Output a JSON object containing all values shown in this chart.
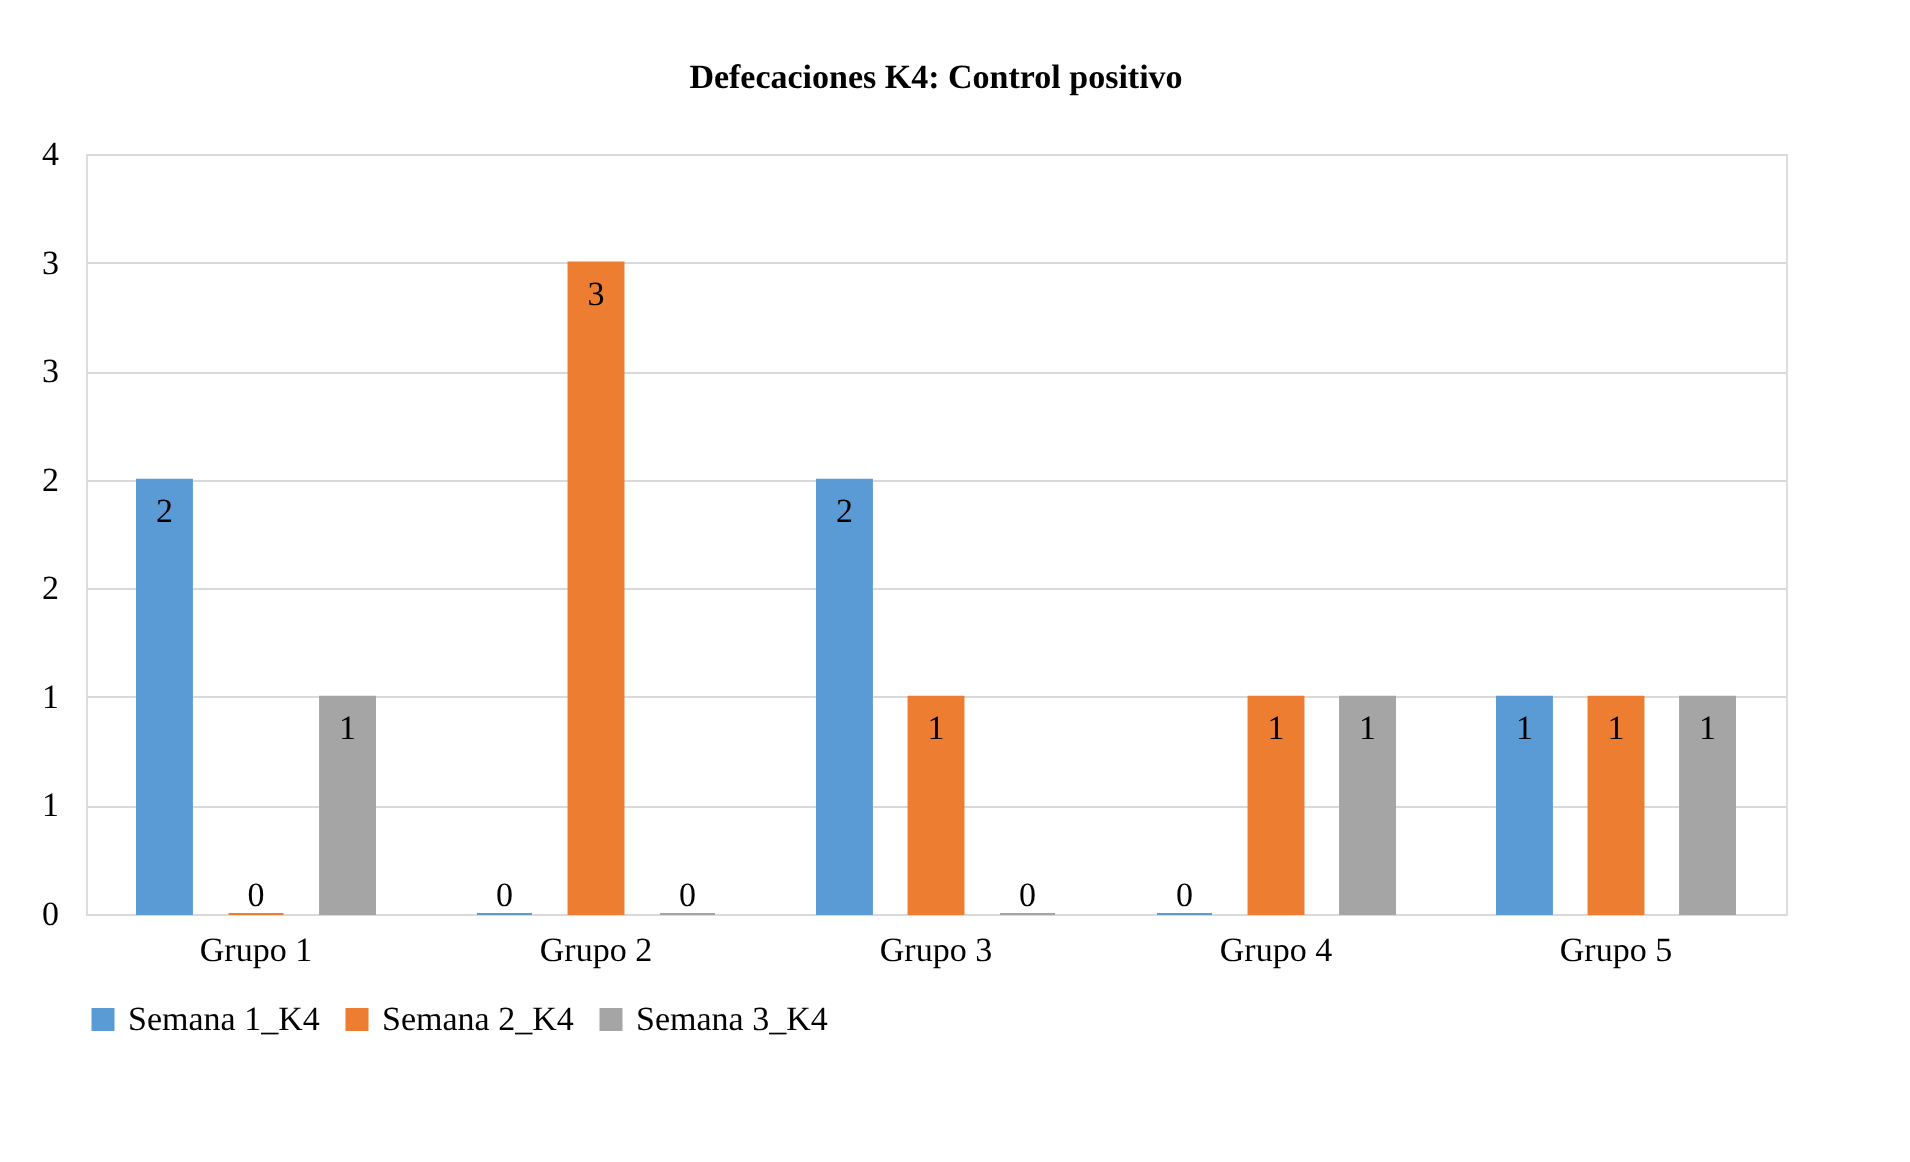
{
  "chart_data": {
    "type": "bar",
    "title": "Defecaciones K4: Control positivo",
    "categories": [
      "Grupo 1",
      "Grupo 2",
      "Grupo 3",
      "Grupo 4",
      "Grupo 5"
    ],
    "series": [
      {
        "name": "Semana 1_K4",
        "color": "#5b9bd5",
        "values": [
          2,
          0,
          2,
          0,
          1
        ]
      },
      {
        "name": "Semana 2_K4",
        "color": "#ed7d31",
        "values": [
          0,
          3,
          1,
          1,
          1
        ]
      },
      {
        "name": "Semana 3_K4",
        "color": "#a5a5a5",
        "values": [
          1,
          0,
          0,
          1,
          1
        ]
      }
    ],
    "ylim": [
      0,
      3.5
    ],
    "yticks": [
      0,
      {
        "value": 0.5,
        "label": "1"
      },
      1,
      {
        "value": 1.5,
        "label": "2"
      },
      2,
      {
        "value": 2.5,
        "label": "3"
      },
      3,
      {
        "value": 3.5,
        "label": "4"
      }
    ],
    "grid": "y",
    "legend": "bottom",
    "data_labels": true
  }
}
